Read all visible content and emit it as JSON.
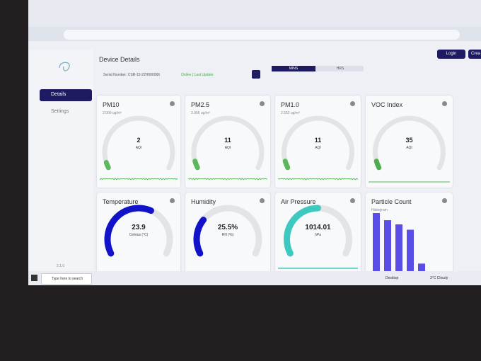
{
  "header": {
    "title": "Device Details",
    "login": "Login",
    "create": "Crea"
  },
  "device": {
    "serial": "Serial Number: CSR-15-22H000066",
    "status": "Online | Last Update",
    "toggle": [
      "MINS",
      "HRS"
    ]
  },
  "sidebar": {
    "items": [
      "Details",
      "Settings"
    ],
    "version": "2.1.0"
  },
  "cards": [
    {
      "title": "PM10",
      "sub": "2.000 ug/m³",
      "value": "2",
      "unit": "AQI"
    },
    {
      "title": "PM2.5",
      "sub": "2.056 ug/m³",
      "value": "11",
      "unit": "AQI"
    },
    {
      "title": "PM1.0",
      "sub": "2.552 ug/m³",
      "value": "11",
      "unit": "AQI"
    },
    {
      "title": "VOC Index",
      "value": "35",
      "unit": "AQI"
    },
    {
      "title": "Temperature",
      "value": "23.9",
      "unit": "Celsius (°C)"
    },
    {
      "title": "Humidity",
      "value": "25.5%",
      "unit": "RH (%)"
    },
    {
      "title": "Air Pressure",
      "value": "1014.01",
      "unit": "hPa"
    }
  ],
  "histogram": {
    "title": "Particle Count",
    "label": "Histogram",
    "values": [
      100,
      88,
      81,
      72,
      15
    ]
  },
  "taskbar": {
    "search": "Type here to search",
    "desktop": "Desktop",
    "weather": "3°C Cloudy"
  }
}
